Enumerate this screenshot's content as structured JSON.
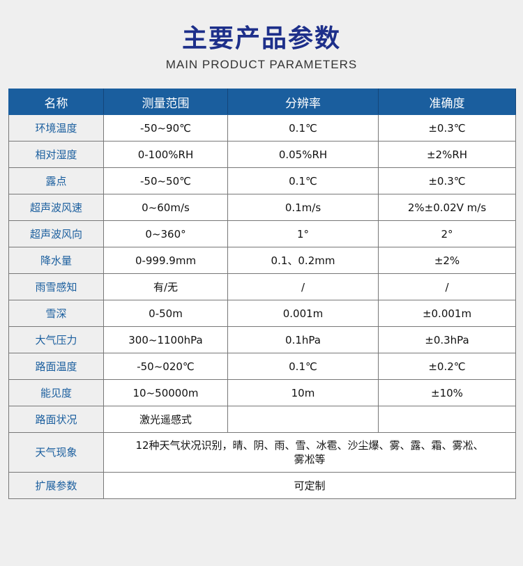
{
  "title": "主要产品参数",
  "subtitle": "MAIN PRODUCT PARAMETERS",
  "colors": {
    "header_bg": "#1a5e9e",
    "title": "#1d2f8a",
    "name_text": "#1a5e9e"
  },
  "table": {
    "headers": [
      "名称",
      "测量范围",
      "分辨率",
      "准确度"
    ],
    "rows": [
      [
        "环境温度",
        "-50~90℃",
        "0.1℃",
        "±0.3℃"
      ],
      [
        "相对湿度",
        "0-100%RH",
        "0.05%RH",
        "±2%RH"
      ],
      [
        "露点",
        "-50~50℃",
        "0.1℃",
        "±0.3℃"
      ],
      [
        "超声波风速",
        "0~60m/s",
        "0.1m/s",
        "2%±0.02V m/s"
      ],
      [
        "超声波风向",
        "0~360°",
        "1°",
        "2°"
      ],
      [
        "降水量",
        "0-999.9mm",
        "0.1、0.2mm",
        "±2%"
      ],
      [
        "雨雪感知",
        "有/无",
        "/",
        "/"
      ],
      [
        "雪深",
        "0-50m",
        "0.001m",
        "±0.001m"
      ],
      [
        "大气压力",
        "300~1100hPa",
        "0.1hPa",
        "±0.3hPa"
      ],
      [
        "路面温度",
        "-50~020℃",
        "0.1℃",
        "±0.2℃"
      ],
      [
        "能见度",
        "10~50000m",
        "10m",
        "±10%"
      ],
      [
        "路面状况",
        "激光遥感式",
        "",
        ""
      ]
    ],
    "weather": {
      "name": "天气现象",
      "line1": "12种天气状况识别，晴、阴、雨、雪、冰雹、沙尘爆、雾、露、霜、雾凇、",
      "line2": "雾凇等"
    },
    "extend": {
      "name": "扩展参数",
      "value": "可定制"
    }
  }
}
